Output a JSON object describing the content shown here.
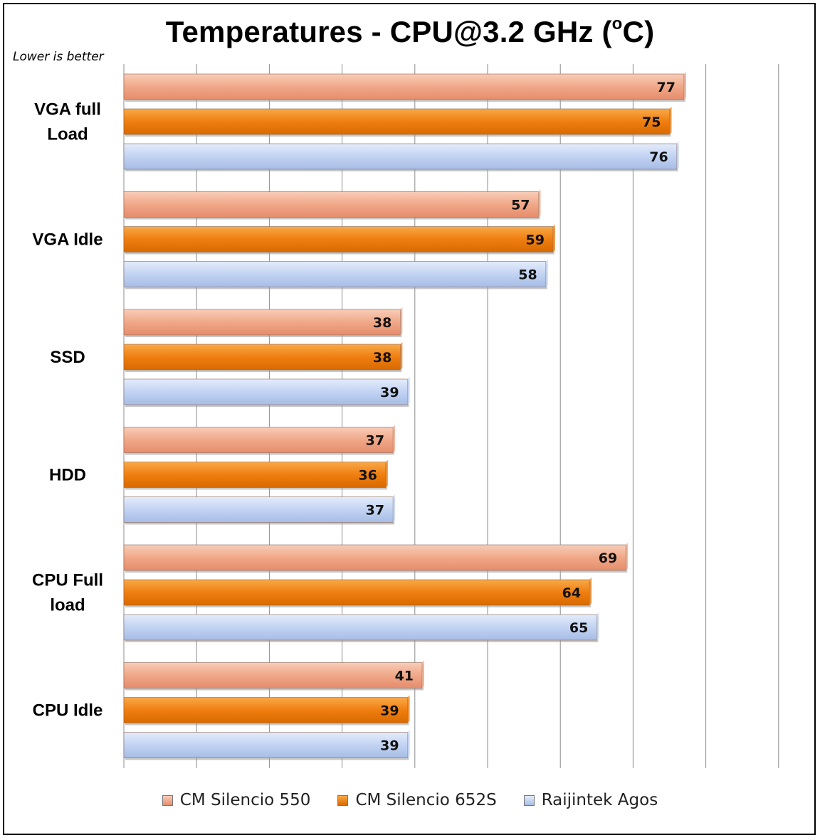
{
  "chart_data": {
    "type": "bar",
    "orientation": "horizontal",
    "title": "Temperatures - CPU@3.2 GHz (",
    "title_superscript": "o",
    "title_suffix": "C)",
    "subtitle": "Lower is better",
    "categories": [
      "VGA full Load",
      "VGA Idle",
      "SSD",
      "HDD",
      "CPU Full load",
      "CPU Idle"
    ],
    "category_lines": [
      [
        "VGA full",
        "Load"
      ],
      [
        "VGA Idle"
      ],
      [
        "SSD"
      ],
      [
        "HDD"
      ],
      [
        "CPU Full",
        "load"
      ],
      [
        "CPU Idle"
      ]
    ],
    "series": [
      {
        "name": "CM Silencio 550",
        "color": "#f0a888",
        "values": [
          77,
          57,
          38,
          37,
          69,
          41
        ]
      },
      {
        "name": "CM Silencio 652S",
        "color": "#f07e10",
        "values": [
          75,
          59,
          38,
          36,
          64,
          39
        ]
      },
      {
        "name": "Raijintek Agos",
        "color": "#c2d3f2",
        "values": [
          76,
          58,
          39,
          37,
          65,
          39
        ]
      }
    ],
    "xlim": [
      0,
      90
    ],
    "gridlines": "vertical",
    "data_labels": true,
    "legend_position": "bottom"
  }
}
